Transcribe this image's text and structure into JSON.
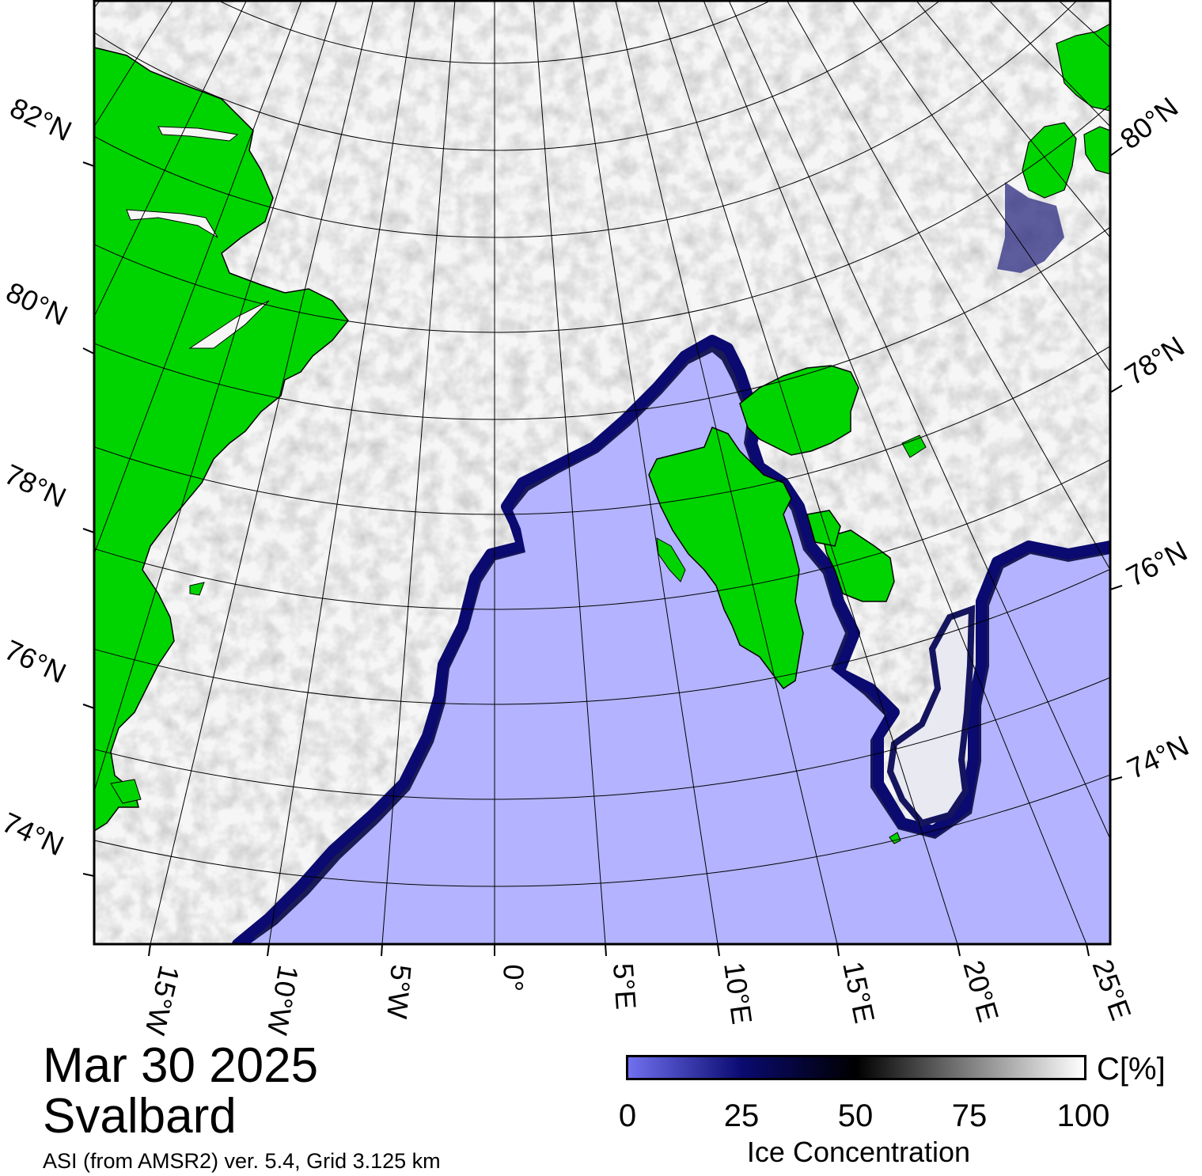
{
  "title": {
    "date": "Mar 30 2025",
    "region": "Svalbard",
    "source": "ASI (from AMSR2) ver. 5.4,  Grid 3.125 km"
  },
  "map": {
    "projection": "polar stereographic",
    "lat_labels_left": [
      "82°N",
      "80°N",
      "78°N",
      "76°N",
      "74°N"
    ],
    "lat_labels_right": [
      "80°N",
      "78°N",
      "76°N",
      "74°N"
    ],
    "lon_labels_bottom": [
      "15°W",
      "10°W",
      "5°W",
      "0°",
      "5°E",
      "10°E",
      "15°E",
      "20°E",
      "25°E"
    ],
    "colors": {
      "land": "#00d400",
      "open_water": "#b3b3ff",
      "ice_full": "#ffffff",
      "ice_edge": "#0a0a70",
      "grid": "#000000"
    }
  },
  "colorbar": {
    "unit": "C[%]",
    "title": "Ice Concentration",
    "ticks": [
      "0",
      "25",
      "50",
      "75",
      "100"
    ],
    "range": [
      0,
      100
    ],
    "stops": [
      "#7070f0",
      "#0a0a70",
      "#000000",
      "#808080",
      "#ffffff"
    ]
  }
}
